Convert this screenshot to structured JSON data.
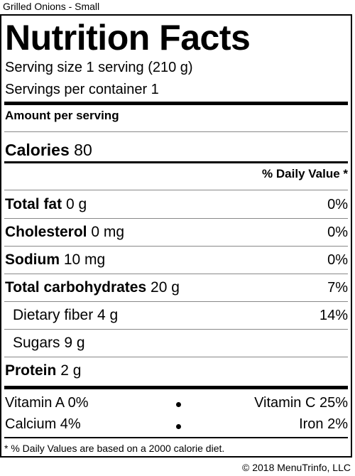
{
  "caption": "Grilled Onions - Small",
  "label": {
    "title": "Nutrition Facts",
    "serving_size": "Serving size 1 serving (210 g)",
    "servings_per_container": "Servings per container 1",
    "amount_per_serving": "Amount per serving",
    "calories_label": "Calories",
    "calories_value": "80",
    "daily_value_header": "% Daily Value *",
    "nutrients": [
      {
        "name": "Total fat",
        "amount": "0 g",
        "dv": "0%"
      },
      {
        "name": "Cholesterol",
        "amount": "0 mg",
        "dv": "0%"
      },
      {
        "name": "Sodium",
        "amount": "10 mg",
        "dv": "0%"
      },
      {
        "name": "Total carbohydrates",
        "amount": "20 g",
        "dv": "7%"
      },
      {
        "name": "Dietary fiber",
        "amount": "4 g",
        "dv": "14%"
      },
      {
        "name": "Sugars",
        "amount": "9 g",
        "dv": ""
      },
      {
        "name": "Protein",
        "amount": "2 g",
        "dv": ""
      }
    ],
    "vitamins": {
      "vitamin_a": "Vitamin A 0%",
      "vitamin_c": "Vitamin C 25%",
      "calcium": "Calcium 4%",
      "iron": "Iron 2%"
    },
    "footnote": "* % Daily Values are based on a 2000 calorie diet."
  },
  "copyright": "© 2018 MenuTrinfo, LLC"
}
